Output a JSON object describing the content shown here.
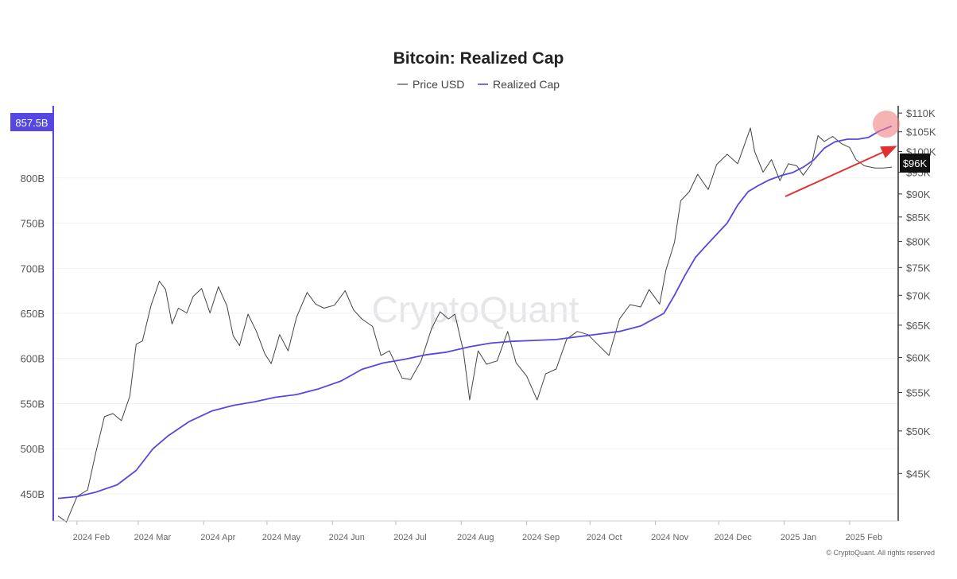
{
  "chart_data": {
    "type": "line",
    "title": "Bitcoin: Realized Cap",
    "legend_position": "top-center",
    "grid": true,
    "x_tick_labels": [
      "2024 Feb",
      "2024 Mar",
      "2024 Apr",
      "2024 May",
      "2024 Jun",
      "2024 Jul",
      "2024 Aug",
      "2024 Sep",
      "2024 Oct",
      "2024 Nov",
      "2024 Dec",
      "2025 Jan",
      "2025 Feb"
    ],
    "x_range": [
      "2024-01-23",
      "2025-02-21"
    ],
    "left_axis": {
      "series": "Realized Cap",
      "tick_labels": [
        "450B",
        "500B",
        "550B",
        "600B",
        "650B",
        "700B",
        "750B",
        "800B"
      ],
      "ylim": [
        420,
        880
      ]
    },
    "right_axis": {
      "series": "Price USD",
      "scale": "log",
      "tick_labels": [
        "$45K",
        "$50K",
        "$55K",
        "$60K",
        "$65K",
        "$70K",
        "$75K",
        "$80K",
        "$85K",
        "$90K",
        "$95K",
        "$100K",
        "$105K",
        "$110K"
      ],
      "ylim": [
        40,
        112
      ]
    },
    "current_value_badges": {
      "realized_cap": "857.5B",
      "price": "$96K"
    },
    "series": [
      {
        "name": "Price USD",
        "color": "#444444",
        "x": [
          "2024-01-23",
          "2024-01-27",
          "2024-02-01",
          "2024-02-06",
          "2024-02-10",
          "2024-02-14",
          "2024-02-18",
          "2024-02-22",
          "2024-02-26",
          "2024-02-29",
          "2024-03-03",
          "2024-03-07",
          "2024-03-11",
          "2024-03-14",
          "2024-03-17",
          "2024-03-20",
          "2024-03-24",
          "2024-03-27",
          "2024-03-31",
          "2024-04-04",
          "2024-04-08",
          "2024-04-12",
          "2024-04-15",
          "2024-04-18",
          "2024-04-22",
          "2024-04-26",
          "2024-04-30",
          "2024-05-03",
          "2024-05-07",
          "2024-05-11",
          "2024-05-15",
          "2024-05-20",
          "2024-05-24",
          "2024-05-28",
          "2024-06-02",
          "2024-06-07",
          "2024-06-11",
          "2024-06-15",
          "2024-06-20",
          "2024-06-24",
          "2024-06-28",
          "2024-07-04",
          "2024-07-08",
          "2024-07-13",
          "2024-07-18",
          "2024-07-22",
          "2024-07-26",
          "2024-07-29",
          "2024-08-02",
          "2024-08-05",
          "2024-08-09",
          "2024-08-13",
          "2024-08-18",
          "2024-08-23",
          "2024-08-27",
          "2024-09-01",
          "2024-09-06",
          "2024-09-10",
          "2024-09-15",
          "2024-09-20",
          "2024-09-25",
          "2024-09-30",
          "2024-10-04",
          "2024-10-10",
          "2024-10-15",
          "2024-10-20",
          "2024-10-25",
          "2024-10-29",
          "2024-11-03",
          "2024-11-06",
          "2024-11-10",
          "2024-11-13",
          "2024-11-17",
          "2024-11-21",
          "2024-11-26",
          "2024-11-30",
          "2024-12-05",
          "2024-12-10",
          "2024-12-16",
          "2024-12-18",
          "2024-12-22",
          "2024-12-26",
          "2024-12-30",
          "2025-01-03",
          "2025-01-07",
          "2025-01-10",
          "2025-01-14",
          "2025-01-17",
          "2025-01-20",
          "2025-01-24",
          "2025-01-28",
          "2025-02-01",
          "2025-02-04",
          "2025-02-08",
          "2025-02-13",
          "2025-02-17",
          "2025-02-21"
        ],
        "values": [
          40.5,
          39.9,
          42.5,
          43.2,
          47.5,
          51.8,
          52.2,
          51.3,
          54.5,
          62.0,
          62.5,
          68.2,
          72.5,
          71.0,
          65.2,
          67.8,
          67.0,
          69.8,
          71.2,
          67.0,
          71.5,
          68.2,
          63.3,
          61.8,
          66.8,
          64.0,
          60.5,
          59.1,
          63.5,
          61.0,
          66.3,
          70.5,
          68.5,
          67.8,
          68.3,
          70.8,
          67.5,
          66.0,
          64.8,
          60.3,
          61.0,
          57.0,
          56.8,
          59.5,
          64.5,
          67.2,
          66.0,
          66.8,
          61.0,
          54.0,
          61.0,
          59.0,
          59.5,
          64.0,
          59.2,
          57.3,
          54.0,
          57.6,
          58.3,
          62.8,
          64.0,
          63.5,
          62.2,
          60.3,
          66.0,
          68.4,
          68.0,
          71.0,
          68.5,
          74.5,
          79.8,
          88.5,
          90.5,
          94.5,
          91.0,
          96.8,
          99.3,
          97.0,
          106.0,
          100.0,
          95.0,
          98.0,
          93.0,
          97.0,
          96.5,
          94.3,
          97.0,
          104.0,
          102.5,
          103.8,
          102.0,
          101.0,
          98.0,
          96.5,
          96.0,
          96.0,
          96.2
        ]
      },
      {
        "name": "Realized Cap",
        "color": "#5548e2",
        "x": [
          "2024-01-23",
          "2024-02-01",
          "2024-02-10",
          "2024-02-20",
          "2024-02-29",
          "2024-03-08",
          "2024-03-15",
          "2024-03-25",
          "2024-04-05",
          "2024-04-15",
          "2024-04-25",
          "2024-05-05",
          "2024-05-15",
          "2024-05-25",
          "2024-06-05",
          "2024-06-15",
          "2024-06-25",
          "2024-07-05",
          "2024-07-15",
          "2024-07-25",
          "2024-08-05",
          "2024-08-15",
          "2024-08-25",
          "2024-09-05",
          "2024-09-15",
          "2024-09-25",
          "2024-10-05",
          "2024-10-15",
          "2024-10-25",
          "2024-11-05",
          "2024-11-10",
          "2024-11-15",
          "2024-11-20",
          "2024-11-25",
          "2024-12-01",
          "2024-12-05",
          "2024-12-10",
          "2024-12-15",
          "2024-12-20",
          "2024-12-25",
          "2024-12-31",
          "2025-01-05",
          "2025-01-10",
          "2025-01-15",
          "2025-01-20",
          "2025-01-25",
          "2025-01-31",
          "2025-02-05",
          "2025-02-10",
          "2025-02-15",
          "2025-02-21"
        ],
        "values": [
          445,
          447,
          452,
          460,
          476,
          500,
          514,
          530,
          542,
          548,
          552,
          557,
          560,
          566,
          575,
          588,
          595,
          599,
          604,
          607,
          613,
          617,
          619,
          620,
          621,
          624,
          627,
          630,
          636,
          650,
          670,
          692,
          712,
          725,
          740,
          750,
          770,
          785,
          792,
          798,
          803,
          806,
          812,
          820,
          833,
          840,
          843,
          843,
          845,
          852,
          857.5
        ]
      }
    ],
    "annotations": [
      "red-trend-arrow",
      "highlight-circle"
    ],
    "watermark": "CryptoQuant",
    "copyright": "© CryptoQuant. All rights reserved"
  }
}
